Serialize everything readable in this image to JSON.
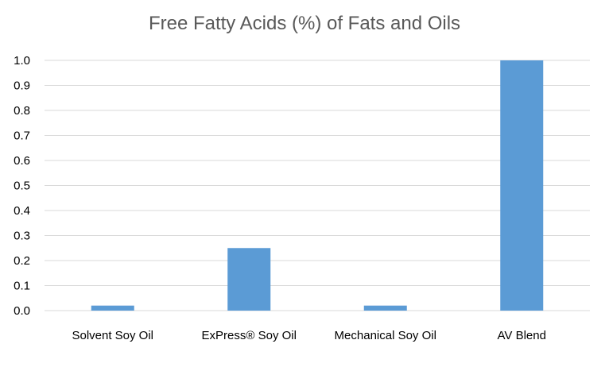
{
  "chart_data": {
    "type": "bar",
    "title": "Free Fatty Acids (%) of Fats and Oils",
    "xlabel": "",
    "ylabel": "",
    "categories": [
      "Solvent Soy Oil",
      "ExPress® Soy Oil",
      "Mechanical Soy Oil",
      "AV Blend"
    ],
    "values": [
      0.02,
      0.25,
      0.02,
      1.0
    ],
    "ylim": [
      0,
      1.0
    ],
    "yticks": [
      "0.0",
      "0.1",
      "0.2",
      "0.3",
      "0.4",
      "0.5",
      "0.6",
      "0.7",
      "0.8",
      "0.9",
      "1.0"
    ],
    "grid": true,
    "legend": "none",
    "bar_color": "#5b9bd5",
    "grid_color": "#d9d9d9"
  }
}
